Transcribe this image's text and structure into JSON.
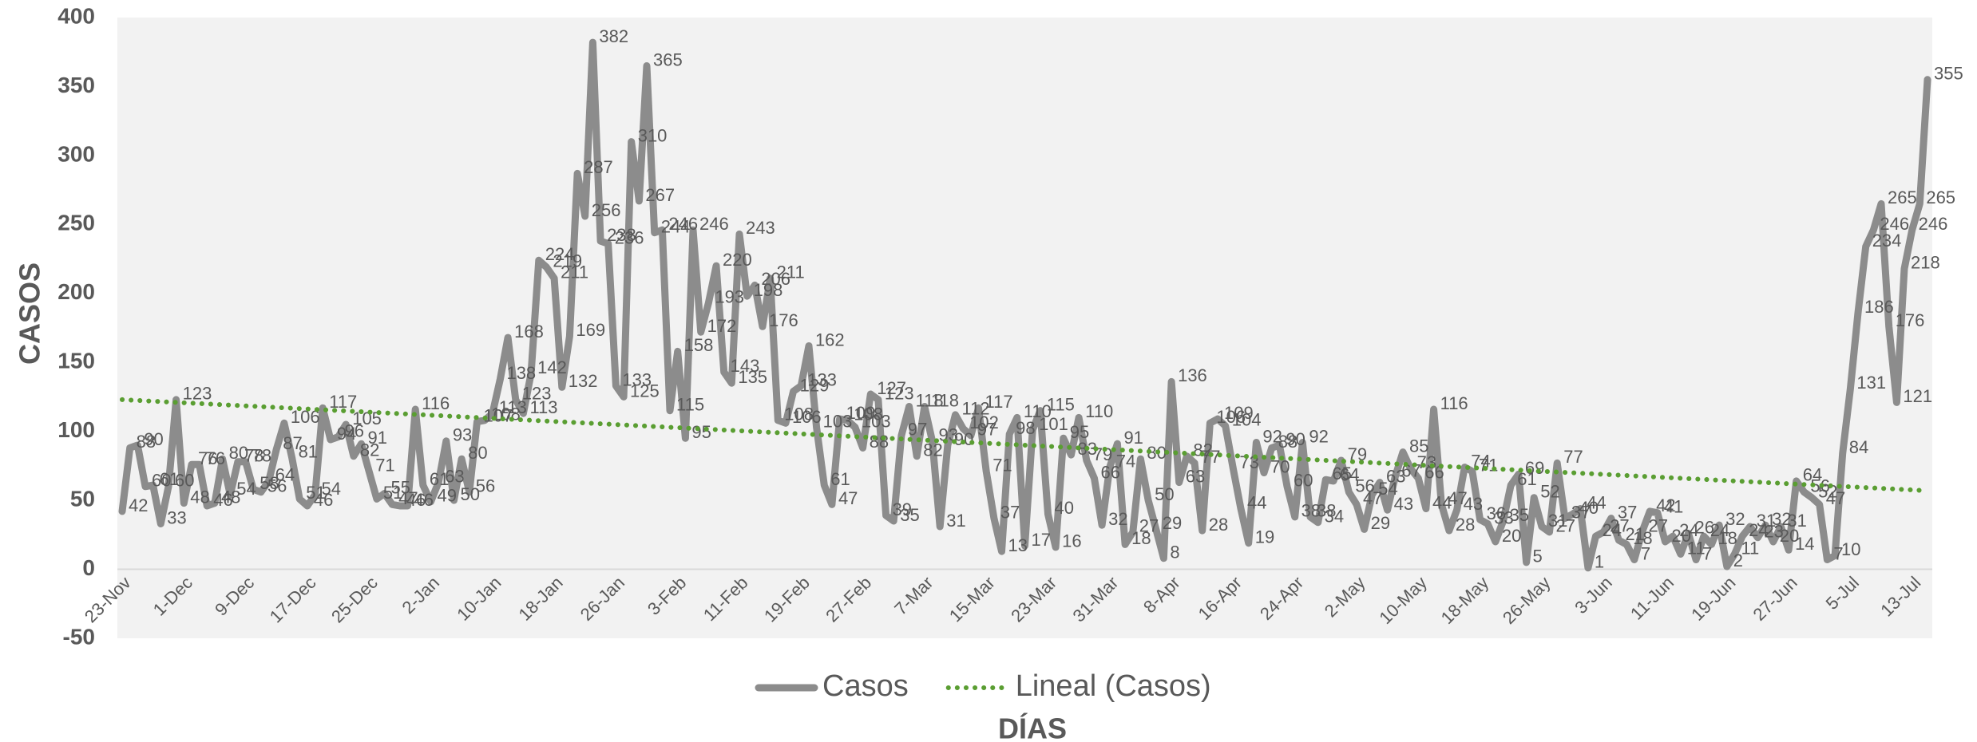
{
  "chart_data": {
    "type": "line",
    "x_label": "DÍAS",
    "y_label": "CASOS",
    "categories": [
      "23-Nov",
      null,
      null,
      null,
      null,
      null,
      null,
      null,
      "1-Dec",
      null,
      null,
      null,
      null,
      null,
      null,
      null,
      "9-Dec",
      null,
      null,
      null,
      null,
      null,
      null,
      null,
      "17-Dec",
      null,
      null,
      null,
      null,
      null,
      null,
      null,
      "25-Dec",
      null,
      null,
      null,
      null,
      null,
      null,
      null,
      "2-Jan",
      null,
      null,
      null,
      null,
      null,
      null,
      null,
      "10-Jan",
      null,
      null,
      null,
      null,
      null,
      null,
      null,
      "18-Jan",
      null,
      null,
      null,
      null,
      null,
      null,
      null,
      "26-Jan",
      null,
      null,
      null,
      null,
      null,
      null,
      null,
      "3-Feb",
      null,
      null,
      null,
      null,
      null,
      null,
      null,
      "11-Feb",
      null,
      null,
      null,
      null,
      null,
      null,
      null,
      "19-Feb",
      null,
      null,
      null,
      null,
      null,
      null,
      null,
      "27-Feb",
      null,
      null,
      null,
      null,
      null,
      null,
      null,
      "7-Mar",
      null,
      null,
      null,
      null,
      null,
      null,
      null,
      "15-Mar",
      null,
      null,
      null,
      null,
      null,
      null,
      null,
      "23-Mar",
      null,
      null,
      null,
      null,
      null,
      null,
      null,
      "31-Mar",
      null,
      null,
      null,
      null,
      null,
      null,
      null,
      "8-Apr",
      null,
      null,
      null,
      null,
      null,
      null,
      null,
      "16-Apr",
      null,
      null,
      null,
      null,
      null,
      null,
      null,
      "24-Apr",
      null,
      null,
      null,
      null,
      null,
      null,
      null,
      "2-May",
      null,
      null,
      null,
      null,
      null,
      null,
      null,
      "10-May",
      null,
      null,
      null,
      null,
      null,
      null,
      null,
      "18-May",
      null,
      null,
      null,
      null,
      null,
      null,
      null,
      "26-May",
      null,
      null,
      null,
      null,
      null,
      null,
      null,
      "3-Jun",
      null,
      null,
      null,
      null,
      null,
      null,
      null,
      "11-Jun",
      null,
      null,
      null,
      null,
      null,
      null,
      null,
      "19-Jun",
      null,
      null,
      null,
      null,
      null,
      null,
      null,
      "27-Jun",
      null,
      null,
      null,
      null,
      null,
      null,
      null,
      "5-Jul",
      null,
      null,
      null,
      null,
      null,
      null,
      null,
      "13-Jul",
      null,
      null
    ],
    "series": [
      {
        "name": "Casos",
        "color": "#8c8c8c",
        "values": [
          42,
          88,
          90,
          60,
          61,
          33,
          60,
          123,
          48,
          76,
          76,
          46,
          48,
          80,
          54,
          78,
          78,
          58,
          56,
          64,
          87,
          106,
          81,
          51,
          46,
          54,
          117,
          94,
          96,
          105,
          82,
          91,
          71,
          51,
          55,
          47,
          46,
          46,
          116,
          61,
          49,
          63,
          93,
          50,
          80,
          56,
          107,
          108,
          113,
          138,
          168,
          123,
          113,
          142,
          224,
          219,
          211,
          132,
          169,
          287,
          256,
          382,
          238,
          236,
          133,
          125,
          310,
          267,
          365,
          244,
          246,
          115,
          158,
          95,
          246,
          172,
          193,
          220,
          143,
          135,
          243,
          198,
          206,
          176,
          211,
          108,
          106,
          129,
          133,
          162,
          103,
          61,
          47,
          109,
          108,
          103,
          88,
          127,
          123,
          39,
          35,
          97,
          118,
          82,
          118,
          93,
          31,
          90,
          112,
          102,
          97,
          117,
          71,
          37,
          13,
          98,
          110,
          17,
          101,
          115,
          40,
          16,
          95,
          83,
          110,
          79,
          66,
          32,
          74,
          91,
          18,
          27,
          80,
          50,
          29,
          8,
          136,
          63,
          82,
          77,
          28,
          106,
          109,
          104,
          73,
          44,
          19,
          92,
          70,
          88,
          90,
          60,
          38,
          92,
          38,
          34,
          65,
          64,
          79,
          56,
          47,
          29,
          54,
          63,
          43,
          67,
          85,
          73,
          66,
          44,
          116,
          47,
          28,
          43,
          74,
          71,
          36,
          33,
          20,
          35,
          61,
          69,
          5,
          52,
          31,
          27,
          77,
          37,
          40,
          44,
          1,
          24,
          27,
          37,
          21,
          18,
          7,
          27,
          42,
          41,
          20,
          24,
          11,
          26,
          7,
          24,
          18,
          32,
          2,
          11,
          24,
          31,
          23,
          32,
          20,
          31,
          14,
          64,
          56,
          52,
          47,
          7,
          10,
          84,
          131,
          186,
          234,
          246,
          265,
          176,
          121,
          218,
          246,
          265,
          355
        ]
      }
    ],
    "trendline": {
      "name": "Lineal (Casos)",
      "color": "#5a9e32",
      "values": [
        123,
        57
      ]
    },
    "ylim": [
      -50,
      400
    ],
    "yticks": [
      -50,
      0,
      50,
      100,
      150,
      200,
      250,
      300,
      350,
      400
    ],
    "grid": false,
    "legend": "bottom"
  }
}
